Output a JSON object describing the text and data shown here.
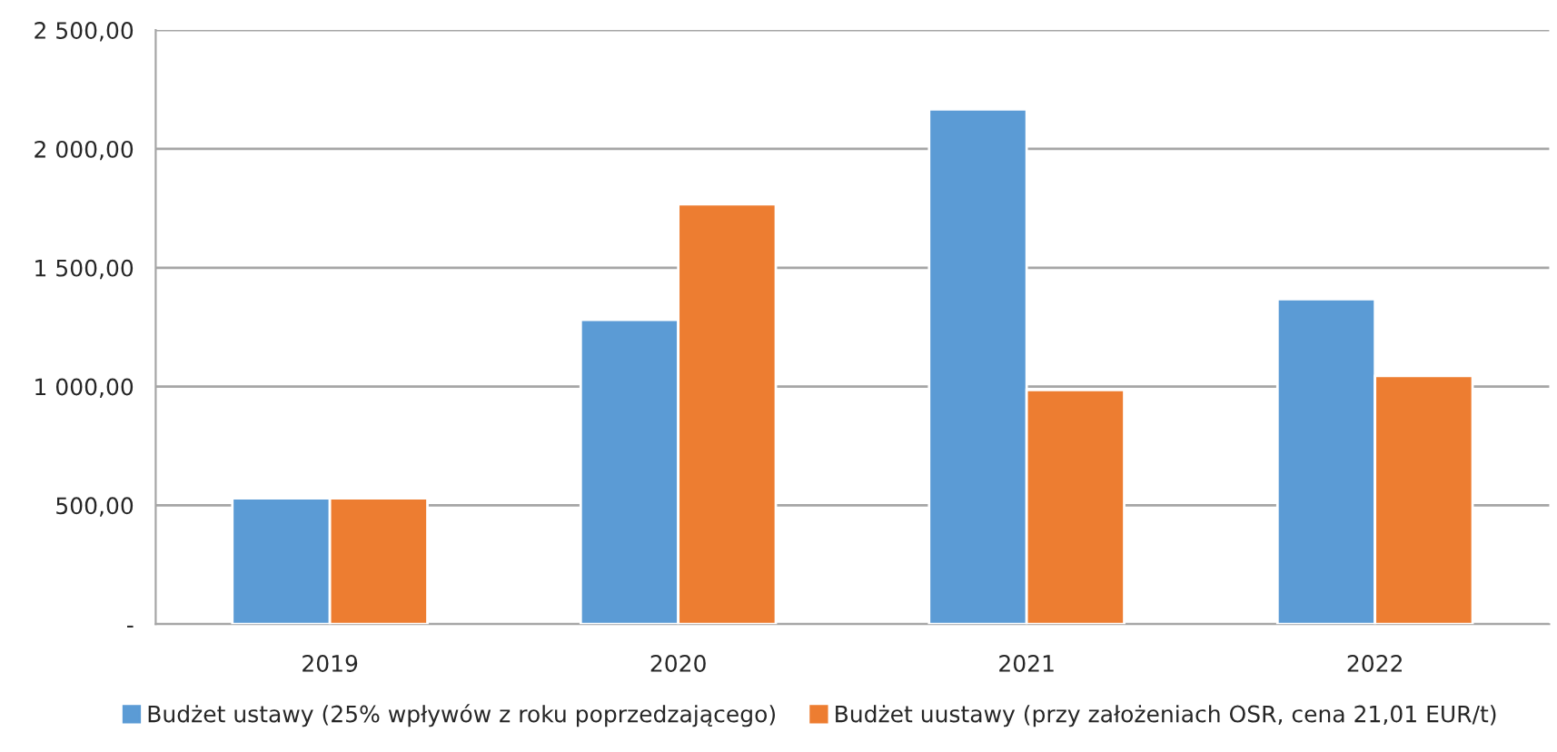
{
  "chart_data": {
    "type": "bar",
    "categories": [
      "2019",
      "2020",
      "2021",
      "2022"
    ],
    "series": [
      {
        "name": "Budżet ustawy (25% wpływów z roku poprzedzającego)",
        "color": "#5b9bd5",
        "values": [
          530,
          1281,
          2167,
          1368
        ]
      },
      {
        "name": "Budżet uustawy (przy założeniach OSR, cena 21,01 EUR/t)",
        "color": "#ed7d31",
        "values": [
          530,
          1767,
          986,
          1045
        ]
      }
    ],
    "ylim": [
      0,
      2500
    ],
    "yticks": [
      {
        "value": 0,
        "label": "-"
      },
      {
        "value": 500,
        "label": "500,00"
      },
      {
        "value": 1000,
        "label": "1 000,00"
      },
      {
        "value": 1500,
        "label": "1 500,00"
      },
      {
        "value": 2000,
        "label": "2 000,00"
      },
      {
        "value": 2500,
        "label": "2 500,00"
      }
    ],
    "grid": "y",
    "legend": "bottom"
  }
}
